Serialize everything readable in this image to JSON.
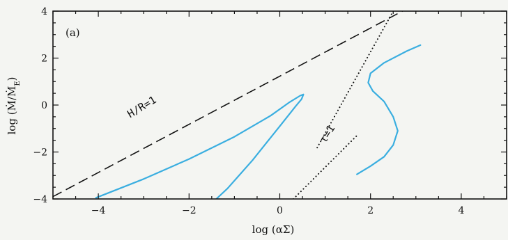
{
  "chart_data": {
    "type": "line",
    "panel_label": "(a)",
    "xlabel": "log (αΣ)",
    "ylabel": "log (Ṁ/Ṁ_E)",
    "ylabel_main": "log (Ṁ/Ṁ",
    "ylabel_sub": "E",
    "ylabel_close": ")",
    "xlim": [
      -5,
      5
    ],
    "ylim": [
      -4,
      4
    ],
    "x_ticks": [
      -4,
      -2,
      0,
      2,
      4
    ],
    "y_ticks": [
      -4,
      -2,
      0,
      2,
      4
    ],
    "x_tick_labels": [
      "−4",
      "−2",
      "0",
      "2",
      "4"
    ],
    "y_tick_labels": [
      "−4",
      "−2",
      "0",
      "2",
      "4"
    ],
    "grid": false,
    "annotations": [
      {
        "text": "H/R=1",
        "at": [
          -3.3,
          -0.55
        ],
        "rotate_deg": -31
      },
      {
        "text": "τ=1",
        "at": [
          1.0,
          -1.65
        ],
        "rotate_deg": -58
      }
    ],
    "series": [
      {
        "style": "dashed",
        "color": "#111111",
        "x": [
          -5.0,
          2.8
        ],
        "y": [
          -3.9,
          4.1
        ]
      },
      {
        "style": "dotted",
        "color": "#111111",
        "x": [
          2.5,
          0.8
        ],
        "y": [
          4.0,
          -1.9
        ]
      },
      {
        "style": "dotted",
        "color": "#111111",
        "x": [
          0.3,
          1.7
        ],
        "y": [
          -4.0,
          -1.3
        ]
      },
      {
        "style": "solid",
        "color": "#3aaee0",
        "x": [
          -4.05,
          -3.0,
          -2.0,
          -1.0,
          -0.2,
          0.2,
          0.45,
          0.52,
          0.48,
          0.35,
          0.0,
          -0.6,
          -1.15,
          -1.4
        ],
        "y": [
          -3.95,
          -3.15,
          -2.3,
          -1.35,
          -0.45,
          0.1,
          0.4,
          0.45,
          0.25,
          -0.05,
          -0.9,
          -2.35,
          -3.55,
          -4.0
        ]
      },
      {
        "style": "solid",
        "color": "#3aaee0",
        "x": [
          3.1,
          2.8,
          2.3,
          2.0,
          1.95,
          2.05,
          2.3,
          2.5,
          2.6,
          2.5,
          2.3,
          2.0,
          1.7
        ],
        "y": [
          2.55,
          2.3,
          1.8,
          1.35,
          0.95,
          0.6,
          0.15,
          -0.5,
          -1.1,
          -1.7,
          -2.2,
          -2.6,
          -2.95
        ]
      }
    ]
  }
}
